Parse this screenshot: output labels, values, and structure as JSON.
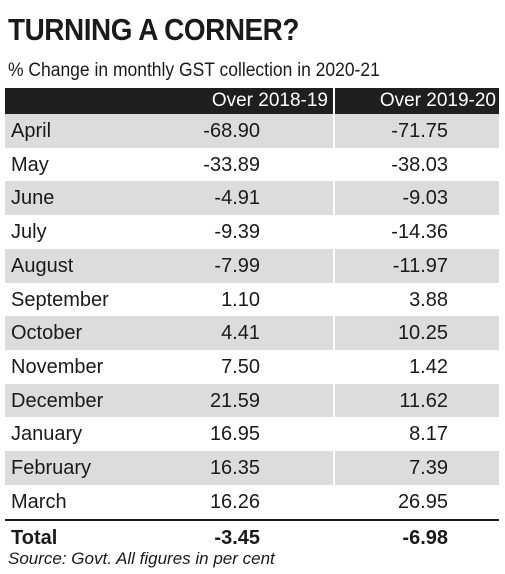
{
  "title": "TURNING A CORNER?",
  "subtitle": "% Change in monthly GST collection in 2020-21",
  "columns": [
    "",
    "Over 2018-19",
    "Over 2019-20"
  ],
  "rows": [
    {
      "month": "April",
      "over_2018_19": "-68.90",
      "over_2019_20": "-71.75"
    },
    {
      "month": "May",
      "over_2018_19": "-33.89",
      "over_2019_20": "-38.03"
    },
    {
      "month": "June",
      "over_2018_19": "-4.91",
      "over_2019_20": "-9.03"
    },
    {
      "month": "July",
      "over_2018_19": "-9.39",
      "over_2019_20": "-14.36"
    },
    {
      "month": "August",
      "over_2018_19": "-7.99",
      "over_2019_20": "-11.97"
    },
    {
      "month": "September",
      "over_2018_19": "1.10",
      "over_2019_20": "3.88"
    },
    {
      "month": "October",
      "over_2018_19": "4.41",
      "over_2019_20": "10.25"
    },
    {
      "month": "November",
      "over_2018_19": "7.50",
      "over_2019_20": "1.42"
    },
    {
      "month": "December",
      "over_2018_19": "21.59",
      "over_2019_20": "11.62"
    },
    {
      "month": "January",
      "over_2018_19": "16.95",
      "over_2019_20": "8.17"
    },
    {
      "month": "February",
      "over_2018_19": "16.35",
      "over_2019_20": "7.39"
    },
    {
      "month": "March",
      "over_2018_19": "16.26",
      "over_2019_20": "26.95"
    }
  ],
  "total": {
    "label": "Total",
    "over_2018_19": "-3.45",
    "over_2019_20": "-6.98"
  },
  "source": "Source: Govt. All figures in per cent",
  "colors": {
    "header_bg": "#1f1f1f",
    "shaded_row": "#dcdcdc",
    "text": "#1a1a1a"
  },
  "chart_data": {
    "type": "table",
    "title": "TURNING A CORNER?",
    "subtitle": "% Change in monthly GST collection in 2020-21",
    "columns": [
      "Over 2018-19",
      "Over 2019-20"
    ],
    "categories": [
      "April",
      "May",
      "June",
      "July",
      "August",
      "September",
      "October",
      "November",
      "December",
      "January",
      "February",
      "March"
    ],
    "series": [
      {
        "name": "Over 2018-19",
        "values": [
          -68.9,
          -33.89,
          -4.91,
          -9.39,
          -7.99,
          1.1,
          4.41,
          7.5,
          21.59,
          16.95,
          16.35,
          16.26
        ]
      },
      {
        "name": "Over 2019-20",
        "values": [
          -71.75,
          -38.03,
          -9.03,
          -14.36,
          -11.97,
          3.88,
          10.25,
          1.42,
          11.62,
          8.17,
          7.39,
          26.95
        ]
      }
    ],
    "total": {
      "Over 2018-19": -3.45,
      "Over 2019-20": -6.98
    },
    "note": "Source: Govt. All figures in per cent"
  }
}
